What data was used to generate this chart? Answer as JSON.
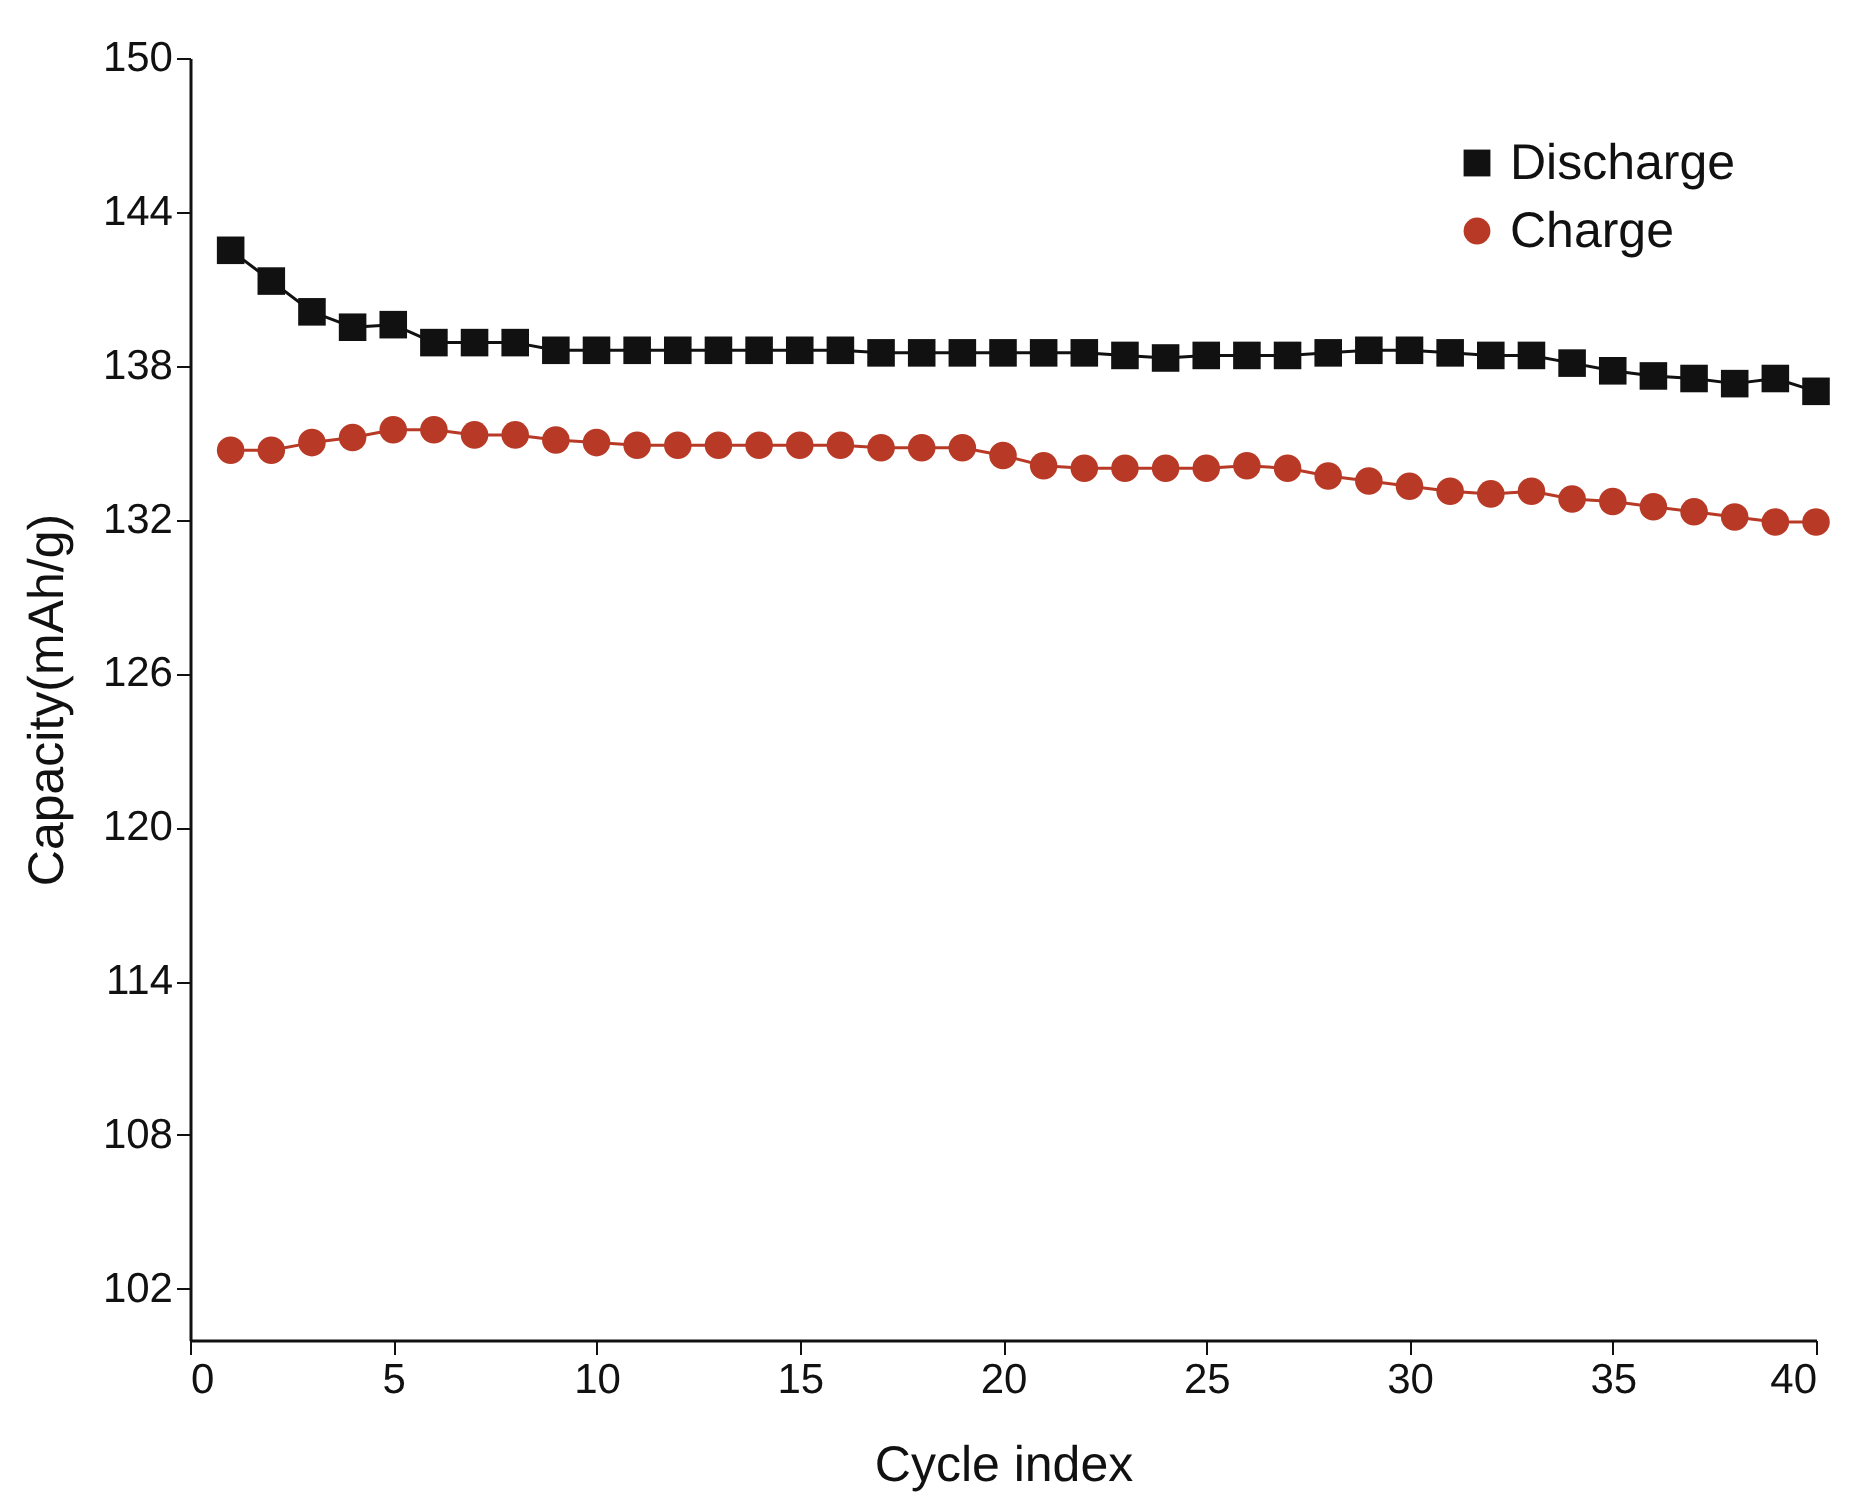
{
  "chart_data": {
    "type": "line",
    "xlabel": "Cycle index",
    "ylabel": "Capacity(mAh/g)",
    "x": [
      1,
      2,
      3,
      4,
      5,
      6,
      7,
      8,
      9,
      10,
      11,
      12,
      13,
      14,
      15,
      16,
      17,
      18,
      19,
      20,
      21,
      22,
      23,
      24,
      25,
      26,
      27,
      28,
      29,
      30,
      31,
      32,
      33,
      34,
      35,
      36,
      37,
      38,
      39,
      40
    ],
    "series": [
      {
        "name": "Discharge",
        "color": "#111111",
        "marker": "square",
        "values": [
          142.5,
          141.3,
          140.1,
          139.5,
          139.6,
          138.9,
          138.9,
          138.9,
          138.6,
          138.6,
          138.6,
          138.6,
          138.6,
          138.6,
          138.6,
          138.6,
          138.5,
          138.5,
          138.5,
          138.5,
          138.5,
          138.5,
          138.4,
          138.3,
          138.4,
          138.4,
          138.4,
          138.5,
          138.6,
          138.6,
          138.5,
          138.4,
          138.4,
          138.1,
          137.8,
          137.6,
          137.5,
          137.3,
          137.5,
          137.0
        ]
      },
      {
        "name": "Charge",
        "color": "#b83a26",
        "marker": "circle",
        "values": [
          134.7,
          134.7,
          135.0,
          135.2,
          135.5,
          135.5,
          135.3,
          135.3,
          135.1,
          135.0,
          134.9,
          134.9,
          134.9,
          134.9,
          134.9,
          134.9,
          134.8,
          134.8,
          134.8,
          134.5,
          134.1,
          134.0,
          134.0,
          134.0,
          134.0,
          134.1,
          134.0,
          133.7,
          133.5,
          133.3,
          133.1,
          133.0,
          133.1,
          132.8,
          132.7,
          132.5,
          132.3,
          132.1,
          131.9,
          131.9
        ]
      }
    ],
    "xlim": [
      0,
      40
    ],
    "xticks": [
      0,
      5,
      10,
      15,
      20,
      25,
      30,
      35,
      40
    ],
    "ylim": [
      100,
      150
    ],
    "yticks": [
      102,
      108,
      114,
      120,
      126,
      132,
      138,
      144,
      150
    ],
    "grid": false,
    "legend": "top right",
    "line_style": "solid"
  }
}
